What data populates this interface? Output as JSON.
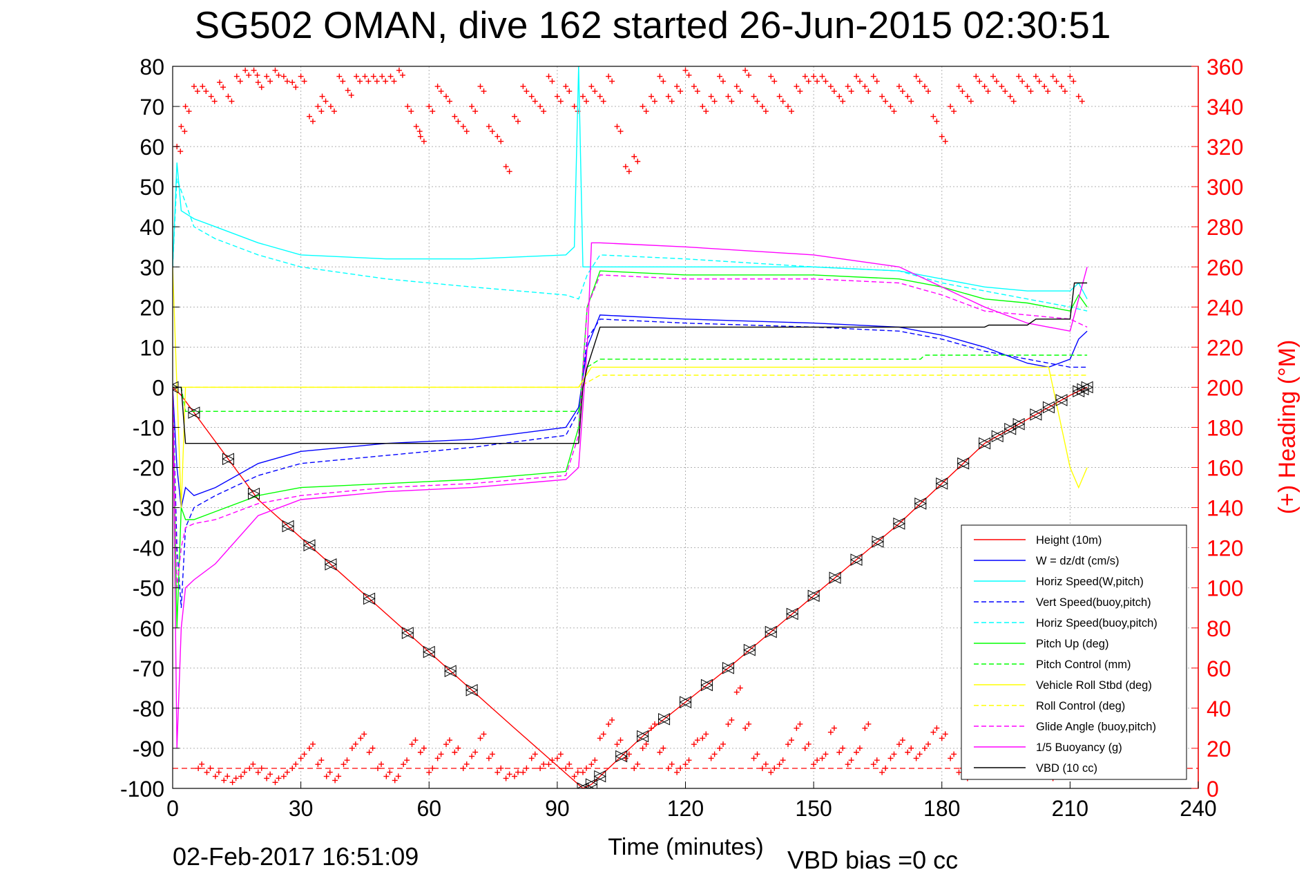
{
  "chart_data": {
    "type": "line",
    "title": "SG502 OMAN, dive 162 started 26-Jun-2015 02:30:51",
    "xlabel": "Time (minutes)",
    "ylabel_right": "(+) Heading (°M)",
    "footer_date": "02-Feb-2017 16:51:09",
    "footer_vbd": "VBD bias =0 cc",
    "xlim": [
      0,
      240
    ],
    "ylim_left": [
      -100,
      80
    ],
    "ylim_right": [
      0,
      360
    ],
    "grid": true,
    "legend_position": "bottom-right",
    "x_ticks": [
      "0",
      "30",
      "60",
      "90",
      "120",
      "150",
      "180",
      "210",
      "240"
    ],
    "y_ticks_left": [
      "80",
      "70",
      "60",
      "50",
      "40",
      "30",
      "20",
      "10",
      "0",
      "-10",
      "-20",
      "-30",
      "-40",
      "-50",
      "-60",
      "-70",
      "-80",
      "-90",
      "-100"
    ],
    "y_ticks_right": [
      "360",
      "340",
      "320",
      "300",
      "280",
      "260",
      "240",
      "220",
      "200",
      "180",
      "160",
      "140",
      "120",
      "100",
      "80",
      "60",
      "40",
      "20",
      "0"
    ],
    "colors": {
      "height": "#ff0000",
      "w": "#0000ff",
      "horiz_speed": "#00ffff",
      "pitch": "#00ff00",
      "roll": "#ffff00",
      "glide": "#ff00ff",
      "vbd": "#000000",
      "heading": "#ff0000"
    },
    "legend": [
      {
        "key": "height",
        "label": "Height (10m)",
        "color": "#ff0000",
        "dash": false
      },
      {
        "key": "w",
        "label": "W = dz/dt (cm/s)",
        "color": "#0000ff",
        "dash": false
      },
      {
        "key": "horiz_w",
        "label": "Horiz Speed(W,pitch)",
        "color": "#00ffff",
        "dash": false
      },
      {
        "key": "vert_buoy",
        "label": "Vert Speed(buoy,pitch)",
        "color": "#0000ff",
        "dash": true
      },
      {
        "key": "horiz_buoy",
        "label": "Horiz Speed(buoy,pitch)",
        "color": "#00ffff",
        "dash": true
      },
      {
        "key": "pitch_up",
        "label": "Pitch Up (deg)",
        "color": "#00ff00",
        "dash": false
      },
      {
        "key": "pitch_ctl",
        "label": "Pitch Control (mm)",
        "color": "#00ff00",
        "dash": true
      },
      {
        "key": "roll",
        "label": "Vehicle Roll Stbd (deg)",
        "color": "#ffff00",
        "dash": false
      },
      {
        "key": "roll_ctl",
        "label": "Roll Control (deg)",
        "color": "#ffff00",
        "dash": true
      },
      {
        "key": "glide",
        "label": "Glide Angle (buoy,pitch)",
        "color": "#ff00ff",
        "dash": true
      },
      {
        "key": "buoyancy",
        "label": "1/5 Buoyancy (g)",
        "color": "#ff00ff",
        "dash": false
      },
      {
        "key": "vbd",
        "label": "VBD (10 cc)",
        "color": "#000000",
        "dash": false
      }
    ],
    "series": [
      {
        "key": "height",
        "x": [
          0,
          2,
          20,
          40,
          60,
          80,
          96,
          98,
          110,
          130,
          150,
          170,
          190,
          210,
          214
        ],
        "y": [
          0,
          -2,
          -28,
          -47,
          -66,
          -85,
          -100,
          -99,
          -87,
          -70,
          -52,
          -34,
          -14,
          -2,
          0
        ]
      },
      {
        "key": "w",
        "x": [
          0,
          1,
          2,
          3,
          5,
          10,
          20,
          30,
          50,
          70,
          92,
          95,
          97,
          100,
          120,
          150,
          170,
          180,
          190,
          200,
          205,
          210,
          212,
          214
        ],
        "y": [
          0,
          -20,
          -30,
          -25,
          -27,
          -25,
          -19,
          -16,
          -14,
          -13,
          -10,
          -5,
          10,
          18,
          17,
          16,
          15,
          13,
          10,
          6,
          5,
          7,
          12,
          14
        ]
      },
      {
        "key": "horiz_w",
        "x": [
          0,
          1,
          2,
          5,
          10,
          20,
          30,
          50,
          70,
          92,
          94,
          95,
          96,
          97,
          100,
          120,
          150,
          170,
          180,
          190,
          200,
          205,
          210,
          212,
          214
        ],
        "y": [
          30,
          56,
          44,
          42,
          40,
          36,
          33,
          32,
          32,
          33,
          35,
          80,
          30,
          30,
          30,
          30,
          30,
          29,
          27,
          25,
          24,
          24,
          24,
          26,
          22
        ]
      },
      {
        "key": "vert_buoy",
        "x": [
          0,
          1,
          2,
          3,
          5,
          10,
          20,
          30,
          50,
          70,
          92,
          95,
          97,
          100,
          120,
          150,
          170,
          180,
          190,
          200,
          210,
          214
        ],
        "y": [
          0,
          -40,
          -55,
          -35,
          -30,
          -27,
          -22,
          -19,
          -17,
          -15,
          -12,
          -6,
          12,
          17,
          16,
          15,
          14,
          12,
          9,
          7,
          5,
          5
        ]
      },
      {
        "key": "horiz_buoy",
        "x": [
          0,
          1,
          5,
          10,
          20,
          30,
          50,
          70,
          92,
          95,
          97,
          100,
          120,
          150,
          170,
          180,
          190,
          200,
          210,
          214
        ],
        "y": [
          30,
          52,
          40,
          37,
          33,
          30,
          27,
          25,
          23,
          22,
          28,
          33,
          32,
          30,
          29,
          26,
          24,
          22,
          20,
          19
        ]
      },
      {
        "key": "pitch_up",
        "x": [
          0,
          1,
          2,
          3,
          5,
          10,
          20,
          30,
          50,
          70,
          92,
          95,
          97,
          100,
          120,
          150,
          170,
          180,
          190,
          200,
          205,
          210,
          212,
          214
        ],
        "y": [
          0,
          -60,
          -30,
          -33,
          -33,
          -31,
          -27,
          -25,
          -24,
          -23,
          -21,
          -10,
          20,
          29,
          28,
          28,
          27,
          25,
          22,
          21,
          20,
          19,
          23,
          20
        ]
      },
      {
        "key": "pitch_ctl",
        "x": [
          0,
          2,
          3,
          90,
          95,
          96,
          97,
          100,
          150,
          175,
          176,
          190,
          210,
          214
        ],
        "y": [
          0,
          0,
          -6,
          -6,
          -6,
          0,
          5,
          7,
          7,
          7,
          8,
          8,
          8,
          8
        ]
      },
      {
        "key": "roll",
        "x": [
          0,
          2,
          3,
          10,
          20,
          30,
          50,
          70,
          90,
          95,
          98,
          100,
          120,
          150,
          180,
          200,
          205,
          210,
          212,
          214
        ],
        "y": [
          30,
          -30,
          0,
          0,
          0,
          0,
          0,
          0,
          0,
          0,
          5,
          5,
          5,
          5,
          5,
          5,
          5,
          -20,
          -25,
          -20
        ]
      },
      {
        "key": "roll_ctl",
        "x": [
          0,
          3,
          30,
          60,
          90,
          95,
          100,
          150,
          200,
          210,
          214
        ],
        "y": [
          0,
          0,
          0,
          0,
          0,
          0,
          3,
          3,
          3,
          3,
          3
        ]
      },
      {
        "key": "glide",
        "x": [
          0,
          1,
          2,
          3,
          5,
          10,
          20,
          30,
          50,
          70,
          92,
          95,
          97,
          100,
          120,
          150,
          170,
          180,
          190,
          200,
          210,
          214
        ],
        "y": [
          0,
          -50,
          -40,
          -35,
          -34,
          -33,
          -29,
          -27,
          -25,
          -24,
          -22,
          -12,
          20,
          28,
          27,
          27,
          26,
          23,
          19,
          18,
          17,
          15
        ]
      },
      {
        "key": "buoyancy",
        "x": [
          0,
          1,
          2,
          3,
          5,
          10,
          20,
          30,
          50,
          70,
          92,
          95,
          97,
          98,
          100,
          120,
          150,
          170,
          180,
          190,
          200,
          205,
          210,
          214
        ],
        "y": [
          0,
          -90,
          -60,
          -50,
          -48,
          -44,
          -32,
          -28,
          -26,
          -25,
          -23,
          -20,
          10,
          36,
          36,
          35,
          33,
          30,
          25,
          20,
          16,
          15,
          14,
          30
        ]
      },
      {
        "key": "vbd",
        "x": [
          0,
          2,
          3,
          95,
          96,
          97,
          100,
          190,
          191,
          200,
          202,
          210,
          211,
          214
        ],
        "y": [
          0,
          0,
          -14,
          -14,
          0,
          5,
          15,
          15,
          15.5,
          15.5,
          17,
          17,
          26,
          26
        ]
      }
    ],
    "heading": {
      "x": [
        1,
        2,
        3,
        5,
        7,
        9,
        11,
        13,
        15,
        17,
        19,
        20,
        22,
        24,
        26,
        28,
        30,
        32,
        34,
        35,
        37,
        39,
        41,
        43,
        45,
        47,
        49,
        51,
        53,
        55,
        57,
        58,
        60,
        62,
        64,
        66,
        68,
        70,
        72,
        74,
        76,
        78,
        80,
        82,
        84,
        86,
        88,
        90,
        92,
        94,
        96,
        98,
        100,
        102,
        104,
        106,
        108,
        110,
        112,
        114,
        116,
        118,
        120,
        122,
        124,
        126,
        128,
        130,
        132,
        134,
        136,
        138,
        140,
        142,
        144,
        146,
        148,
        150,
        152,
        154,
        156,
        158,
        160,
        162,
        164,
        166,
        168,
        170,
        172,
        174,
        176,
        178,
        180,
        182,
        184,
        186,
        188,
        190,
        192,
        194,
        196,
        198,
        200,
        202,
        204,
        206,
        208,
        210,
        212
      ],
      "y": [
        320,
        330,
        340,
        350,
        350,
        345,
        352,
        345,
        355,
        358,
        358,
        352,
        355,
        358,
        355,
        352,
        355,
        335,
        340,
        345,
        340,
        355,
        348,
        355,
        355,
        355,
        355,
        355,
        358,
        340,
        330,
        325,
        340,
        350,
        345,
        335,
        330,
        340,
        350,
        330,
        325,
        310,
        335,
        350,
        345,
        340,
        355,
        345,
        350,
        340,
        345,
        350,
        345,
        355,
        330,
        310,
        315,
        340,
        345,
        355,
        345,
        350,
        358,
        350,
        340,
        345,
        355,
        345,
        350,
        358,
        345,
        340,
        355,
        345,
        340,
        350,
        355,
        355,
        355,
        350,
        345,
        350,
        355,
        350,
        355,
        345,
        340,
        350,
        345,
        355,
        350,
        335,
        325,
        340,
        350,
        345,
        355,
        350,
        355,
        350,
        345,
        355,
        350,
        355,
        350,
        355,
        350,
        355,
        345
      ]
    },
    "heading_low": {
      "x": [
        6,
        8,
        10,
        12,
        14,
        16,
        18,
        20,
        22,
        24,
        26,
        28,
        30,
        32,
        34,
        36,
        38,
        40,
        42,
        44,
        46,
        48,
        50,
        52,
        54,
        56,
        58,
        60,
        62,
        64,
        66,
        68,
        70,
        72,
        74,
        76,
        78,
        80,
        82,
        84,
        86,
        88,
        90,
        92,
        94,
        96,
        98,
        100,
        102,
        104,
        106,
        108,
        110,
        112,
        114,
        116,
        118,
        120,
        122,
        124,
        126,
        128,
        130,
        132,
        134,
        136,
        138,
        140,
        142,
        144,
        146,
        148,
        150,
        152,
        154,
        156,
        158,
        160,
        162,
        164,
        166,
        168,
        170,
        172,
        174,
        176,
        178,
        180,
        182,
        184,
        186,
        188,
        190,
        192,
        194,
        196,
        198,
        200,
        202,
        204,
        206,
        208,
        210,
        212
      ],
      "y": [
        10,
        8,
        6,
        4,
        3,
        6,
        10,
        8,
        5,
        3,
        6,
        10,
        15,
        20,
        12,
        6,
        4,
        12,
        20,
        25,
        18,
        10,
        6,
        4,
        12,
        22,
        18,
        8,
        15,
        22,
        18,
        10,
        16,
        25,
        15,
        8,
        5,
        6,
        8,
        15,
        10,
        12,
        15,
        10,
        6,
        8,
        12,
        25,
        32,
        22,
        15,
        10,
        20,
        30,
        18,
        10,
        8,
        12,
        22,
        25,
        15,
        20,
        32,
        48,
        30,
        15,
        10,
        8,
        12,
        22,
        30,
        20,
        12,
        15,
        28,
        18,
        12,
        18,
        30,
        12,
        8,
        15,
        22,
        18,
        15,
        20,
        28,
        25,
        15,
        8,
        5,
        10,
        15,
        8,
        12,
        20,
        15,
        10,
        8,
        6,
        5,
        10,
        15,
        25
      ]
    },
    "heading_ref": 10,
    "markers_x": [
      0,
      5,
      13,
      19,
      27,
      32,
      37,
      46,
      55,
      60,
      65,
      70,
      96,
      98,
      100,
      105,
      110,
      115,
      120,
      125,
      130,
      135,
      140,
      145,
      150,
      155,
      160,
      165,
      170,
      175,
      180,
      185,
      190,
      193,
      196,
      198,
      202,
      205,
      208,
      212,
      213,
      214
    ]
  }
}
